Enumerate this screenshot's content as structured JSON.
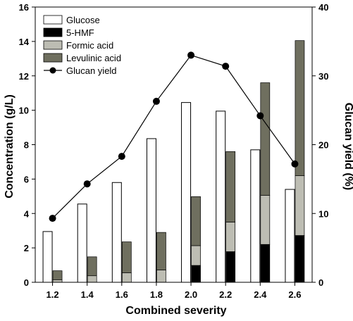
{
  "chart_data": {
    "type": "bar",
    "categories": [
      "1.2",
      "1.4",
      "1.6",
      "1.8",
      "2.0",
      "2.2",
      "2.4",
      "2.6"
    ],
    "x": [
      1.2,
      1.4,
      1.6,
      1.8,
      2.0,
      2.2,
      2.4,
      2.6
    ],
    "xlabel": "Combined severity",
    "ylabel": "Concentration (g/L)",
    "y2label": "Glucan yield (%)",
    "ylim": [
      0,
      16
    ],
    "y2lim": [
      0,
      40
    ],
    "yticks": [
      "0",
      "2",
      "4",
      "6",
      "8",
      "10",
      "12",
      "14",
      "16"
    ],
    "y2ticks": [
      "0",
      "10",
      "20",
      "30",
      "40"
    ],
    "series": [
      {
        "name": "Glucose",
        "kind": "bar",
        "color": "#ffffff",
        "values": [
          2.95,
          4.55,
          5.8,
          8.35,
          10.45,
          9.95,
          7.7,
          5.4
        ]
      },
      {
        "name": "5-HMF",
        "kind": "stacked-bar",
        "color": "#000000",
        "values": [
          0.0,
          0.0,
          0.0,
          0.0,
          0.98,
          1.78,
          2.2,
          2.72
        ]
      },
      {
        "name": "Formic acid",
        "kind": "stacked-bar",
        "color": "#bdbdb3",
        "values": [
          0.15,
          0.38,
          0.55,
          0.72,
          1.15,
          1.72,
          2.85,
          3.48
        ]
      },
      {
        "name": "Levulinic acid",
        "kind": "stacked-bar",
        "color": "#6f6f5f",
        "values": [
          0.52,
          1.1,
          1.8,
          2.18,
          2.85,
          4.1,
          6.55,
          7.85
        ]
      },
      {
        "name": "Glucan yield",
        "kind": "line",
        "axis": "right",
        "color": "#000000",
        "values": [
          9.3,
          14.3,
          18.3,
          26.3,
          33.0,
          31.4,
          24.2,
          17.2
        ]
      }
    ],
    "legend": [
      "Glucose",
      "5-HMF",
      "Formic acid",
      "Levulinic acid",
      "Glucan yield"
    ],
    "legend_position": "top-left",
    "grid": false
  }
}
